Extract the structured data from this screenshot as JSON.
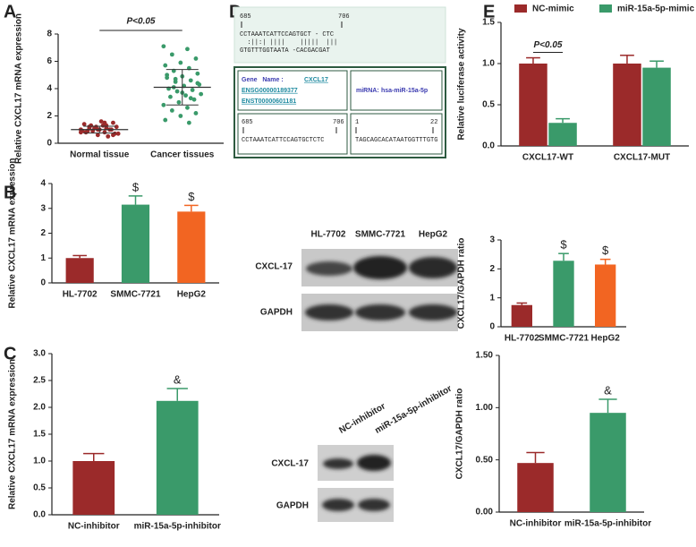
{
  "panel_labels": [
    "A",
    "B",
    "C",
    "D",
    "E"
  ],
  "chart_data": [
    {
      "type": "dotplot",
      "ylabel": "Relative CXCL17 mRNA expression",
      "categories": [
        "Normal tissue",
        "Cancer tissues"
      ],
      "color": "#9b2a2a",
      "color2": "#3a9a6a",
      "groups": [
        {
          "values": [
            1.0,
            0.8,
            1.2,
            1.5,
            0.6,
            0.9,
            1.1,
            1.3,
            0.7,
            1.0,
            1.4,
            0.5,
            0.9,
            1.2,
            1.6,
            0.8,
            1.0,
            1.1,
            0.7,
            1.3,
            0.9,
            1.0,
            1.2,
            0.8,
            1.5,
            1.1,
            0.6,
            1.0,
            0.9,
            1.3
          ],
          "mean": 1.0,
          "sd": 0.25
        },
        {
          "values": [
            7.1,
            6.9,
            6.5,
            6.2,
            5.9,
            5.7,
            5.5,
            5.3,
            5.1,
            4.9,
            4.8,
            4.6,
            4.5,
            4.3,
            4.2,
            4.0,
            3.9,
            3.8,
            3.6,
            3.5,
            3.4,
            3.2,
            3.0,
            2.8,
            2.6,
            2.4,
            2.2,
            2.0,
            1.7,
            1.5,
            4.1,
            4.4,
            3.7,
            5.0,
            3.3,
            4.7
          ],
          "mean": 4.1,
          "sd": 1.3
        }
      ],
      "annotation": "P<0.05",
      "ylim": [
        0,
        8
      ],
      "yticks": [
        0,
        2,
        4,
        6,
        8
      ]
    },
    {
      "type": "bar",
      "ylabel": "Relative CXCL17 mRNA expression",
      "categories": [
        "HL-7702",
        "SMMC-7721",
        "HepG2"
      ],
      "series": [
        {
          "colors": [
            "#9b2a2a",
            "#3a9a6a",
            "#f26522"
          ],
          "values": [
            1.0,
            3.15,
            2.87
          ],
          "errors": [
            0.1,
            0.35,
            0.25
          ],
          "markers": [
            null,
            "$",
            "$"
          ]
        }
      ],
      "ylim": [
        0,
        4
      ],
      "yticks": [
        0,
        1,
        2,
        3,
        4
      ]
    },
    {
      "type": "bar",
      "ylabel": "CXCL17/GAPDH ratio",
      "categories": [
        "HL-7702",
        "SMMC-7721",
        "HepG2"
      ],
      "series": [
        {
          "colors": [
            "#9b2a2a",
            "#3a9a6a",
            "#f26522"
          ],
          "values": [
            0.75,
            2.28,
            2.15
          ],
          "errors": [
            0.07,
            0.25,
            0.18
          ],
          "markers": [
            null,
            "$",
            "$"
          ]
        }
      ],
      "ylim": [
        0,
        3
      ],
      "yticks": [
        0,
        1,
        2,
        3
      ]
    },
    {
      "type": "bar",
      "ylabel": "Relative CXCL17 mRNA expression",
      "categories": [
        "NC-inhibitor",
        "miR-15a-5p-inhibitor"
      ],
      "series": [
        {
          "colors": [
            "#9b2a2a",
            "#3a9a6a"
          ],
          "values": [
            1.0,
            2.12
          ],
          "errors": [
            0.14,
            0.23
          ],
          "markers": [
            null,
            "&"
          ]
        }
      ],
      "ylim": [
        0,
        3
      ],
      "yticks": [
        {
          "value": 0,
          "label": "0.0"
        },
        {
          "value": 0.5,
          "label": "0.5"
        },
        {
          "value": 1,
          "label": "1.0"
        },
        {
          "value": 1.5,
          "label": "1.5"
        },
        {
          "value": 2,
          "label": "2.0"
        },
        {
          "value": 2.5,
          "label": "2.5"
        },
        {
          "value": 3,
          "label": "3.0"
        }
      ]
    },
    {
      "type": "bar",
      "ylabel": "CXCL17/GAPDH ratio",
      "categories": [
        "NC-inhibitor",
        "miR-15a-5p-inhibitor"
      ],
      "series": [
        {
          "colors": [
            "#9b2a2a",
            "#3a9a6a"
          ],
          "values": [
            0.47,
            0.95
          ],
          "errors": [
            0.1,
            0.13
          ],
          "markers": [
            null,
            "&"
          ]
        }
      ],
      "ylim": [
        0,
        1.5
      ],
      "yticks": [
        {
          "value": 0,
          "label": "0.00"
        },
        {
          "value": 0.5,
          "label": "0.50"
        },
        {
          "value": 1,
          "label": "1.00"
        },
        {
          "value": 1.5,
          "label": "1.50"
        }
      ]
    },
    {
      "type": "bar",
      "ylabel": "Relative luciferase activity",
      "categories": [
        "CXCL17-WT",
        "CXCL17-MUT"
      ],
      "series": [
        {
          "name": "NC-mimic",
          "color": "#9b2a2a",
          "values": [
            1.0,
            1.0
          ],
          "errors": [
            0.07,
            0.1
          ]
        },
        {
          "name": "miR-15a-5p-mimic",
          "color": "#3a9a6a",
          "values": [
            0.28,
            0.95
          ],
          "errors": [
            0.05,
            0.08
          ]
        }
      ],
      "annotation": "P<0.05",
      "ylim": [
        0,
        1.5
      ],
      "yticks": [
        {
          "value": 0,
          "label": "0.0"
        },
        {
          "value": 0.5,
          "label": "0.5"
        },
        {
          "value": 1,
          "label": "1.0"
        },
        {
          "value": 1.5,
          "label": "1.5"
        }
      ]
    }
  ],
  "blot_b": {
    "columns": [
      "HL-7702",
      "SMMC-7721",
      "HepG2"
    ],
    "rows": [
      "CXCL-17",
      "GAPDH"
    ]
  },
  "blot_c": {
    "columns": [
      "NC-inhibitor",
      "miR-15a-5p-inhibitor"
    ],
    "rows": [
      "CXCL-17",
      "GAPDH"
    ]
  },
  "sequence_panel": {
    "top_start": "685",
    "top_end": "706",
    "target": "CCTAAATCATTCCAGTGCT - CTC",
    "pairing": "  :||:| ||||    |||||  |||",
    "mirna_seq_rev": "GTGTTTGGTAATA -CACGACGAT",
    "gene_label": "Gene   Name :",
    "gene": "CXCL17",
    "ensg": "ENSG00000189377",
    "enst": "ENST00000601181",
    "mirna_label": "miRNA:",
    "mirna": "hsa-miR-15a-5p",
    "target_start": "685",
    "target_end": "706",
    "target_seq": "CCTAAATCATTCCAGTGCTCTC",
    "mirna_start": "1",
    "mirna_end": "22",
    "mirna_seq": "TAGCAGCACATAATGGTTTGTG"
  }
}
